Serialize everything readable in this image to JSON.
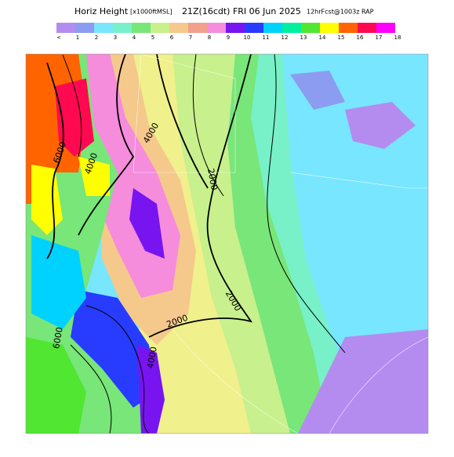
{
  "header": {
    "title": "Horiz Height",
    "units": "[x1000ftMSL]",
    "time": "21Z(16cdt) FRI 06 Jun 2025",
    "forecast": "12hrFcst@1003z RAP"
  },
  "legend": {
    "items": [
      {
        "label": "<",
        "color": "#b48cf0"
      },
      {
        "label": "1",
        "color": "#8c9cf0"
      },
      {
        "label": "2",
        "color": "#78e6ff"
      },
      {
        "label": "3",
        "color": "#78f0c8"
      },
      {
        "label": "4",
        "color": "#78e678"
      },
      {
        "label": "5",
        "color": "#c8f08c"
      },
      {
        "label": "6",
        "color": "#f5c88c"
      },
      {
        "label": "7",
        "color": "#f0a08c"
      },
      {
        "label": "8",
        "color": "#f58cdc"
      },
      {
        "label": "9",
        "color": "#7814f0"
      },
      {
        "label": "10",
        "color": "#283cff"
      },
      {
        "label": "11",
        "color": "#00d2ff"
      },
      {
        "label": "12",
        "color": "#00f0a0"
      },
      {
        "label": "13",
        "color": "#50e632"
      },
      {
        "label": "14",
        "color": "#ffff00"
      },
      {
        "label": "15",
        "color": "#ff6400"
      },
      {
        "label": "16",
        "color": "#ff0a50"
      },
      {
        "label": "17",
        "color": "#ff00ff"
      },
      {
        "label": "18",
        "color": null
      }
    ]
  },
  "map": {
    "contour_labels": [
      "6000",
      "4000",
      "4000",
      "2000",
      "2000",
      "2000",
      "6000",
      "4000"
    ]
  }
}
